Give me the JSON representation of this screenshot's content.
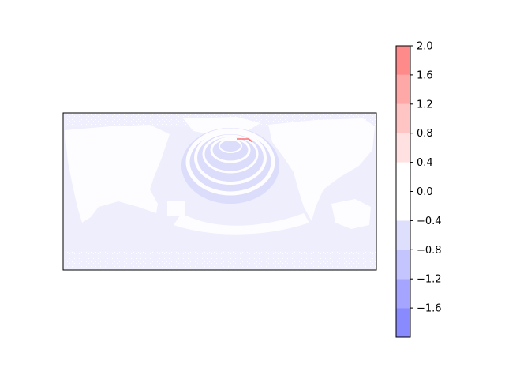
{
  "chart_data": {
    "type": "heatmap",
    "title": "",
    "xlabel": "",
    "ylabel": "",
    "map": {
      "projection": "plate-carree",
      "axes_ticks": "none",
      "field_description": "filled contour field of small mostly negative values over a world map"
    },
    "colorbar": {
      "orientation": "vertical",
      "placement": "right",
      "range": [
        -2.0,
        2.0
      ],
      "levels": [
        -2.0,
        -1.6,
        -1.2,
        -0.8,
        -0.4,
        0.0,
        0.4,
        0.8,
        1.2,
        1.6,
        2.0
      ],
      "bin_colors": [
        "#8a8aff",
        "#a5a5ff",
        "#c4c4ff",
        "#dedefd",
        "#ffffff",
        "#ffffff",
        "#ffe1e1",
        "#ffc4c4",
        "#ffa8a8",
        "#ff8a8a"
      ],
      "tick_labels": [
        "−1.6",
        "−1.2",
        "−0.8",
        "−0.4",
        "0.0",
        "0.4",
        "0.8",
        "1.2",
        "1.6",
        "2.0"
      ],
      "tick_values": [
        -1.6,
        -1.2,
        -0.8,
        -0.4,
        0.0,
        0.4,
        0.8,
        1.2,
        1.6,
        2.0
      ]
    }
  }
}
